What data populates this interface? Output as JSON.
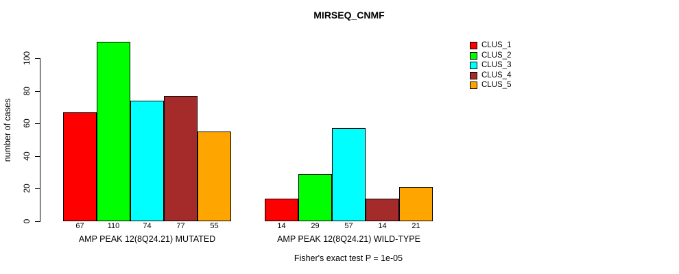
{
  "chart_data": {
    "type": "bar",
    "title": "MIRSEQ_CNMF",
    "ylabel": "number of cases",
    "xlabel": "",
    "ylim": [
      0,
      110
    ],
    "yticks": [
      0,
      20,
      40,
      60,
      80,
      100
    ],
    "grid": false,
    "legend_position": "right-outside",
    "categories": [
      "AMP PEAK 12(8Q24.21) MUTATED",
      "AMP PEAK 12(8Q24.21) WILD-TYPE"
    ],
    "series": [
      {
        "name": "CLUS_1",
        "color": "#ff0000",
        "values": [
          67,
          14
        ]
      },
      {
        "name": "CLUS_2",
        "color": "#00ff00",
        "values": [
          110,
          29
        ]
      },
      {
        "name": "CLUS_3",
        "color": "#00ffff",
        "values": [
          74,
          57
        ]
      },
      {
        "name": "CLUS_4",
        "color": "#a52a2a",
        "values": [
          77,
          14
        ]
      },
      {
        "name": "CLUS_5",
        "color": "#ffa500",
        "values": [
          55,
          21
        ]
      }
    ],
    "bar_value_labels": true,
    "annotation": "Fisher's exact test P = 1e-05",
    "colors": {
      "axis": "#000000",
      "text": "#000000",
      "background": "#ffffff"
    }
  }
}
